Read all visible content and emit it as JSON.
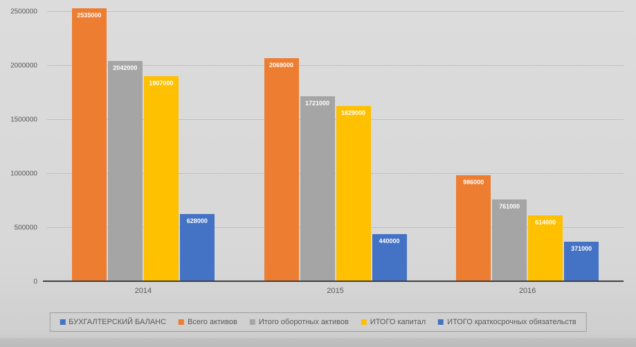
{
  "chart_data": {
    "type": "bar",
    "categories": [
      "2014",
      "2015",
      "2016"
    ],
    "series": [
      {
        "name": "Всего активов",
        "color": "#ED7D31",
        "values": [
          2535000,
          2069000,
          986000
        ]
      },
      {
        "name": "Итого оборотных активов",
        "color": "#A5A5A5",
        "values": [
          2042000,
          1721000,
          761000
        ]
      },
      {
        "name": "ИТОГО капитал",
        "color": "#FFC000",
        "values": [
          1907000,
          1629000,
          614000
        ]
      },
      {
        "name": "ИТОГО краткосрочных обязательств",
        "color": "#4472C4",
        "values": [
          628000,
          440000,
          371000
        ]
      }
    ],
    "y_ticks": [
      0,
      500000,
      1000000,
      1500000,
      2000000,
      2500000
    ],
    "ylim": [
      0,
      2500000
    ],
    "grid": true,
    "legend_position": "bottom",
    "legend": [
      {
        "label": "БУХГАЛТЕРСКИЙ БАЛАНС",
        "color": "#4472C4"
      },
      {
        "label": "Всего активов",
        "color": "#ED7D31"
      },
      {
        "label": "Итого оборотных активов",
        "color": "#A5A5A5"
      },
      {
        "label": "ИТОГО капитал",
        "color": "#FFC000"
      },
      {
        "label": "ИТОГО краткосрочных обязательств",
        "color": "#4472C4"
      }
    ],
    "colors": {
      "background": "#D7D7D7",
      "gridline": "#C0C0C0",
      "axis_line": "#3F3F3F",
      "tick_text": "#595959",
      "bar_label_text": "#FFFFFF"
    }
  }
}
